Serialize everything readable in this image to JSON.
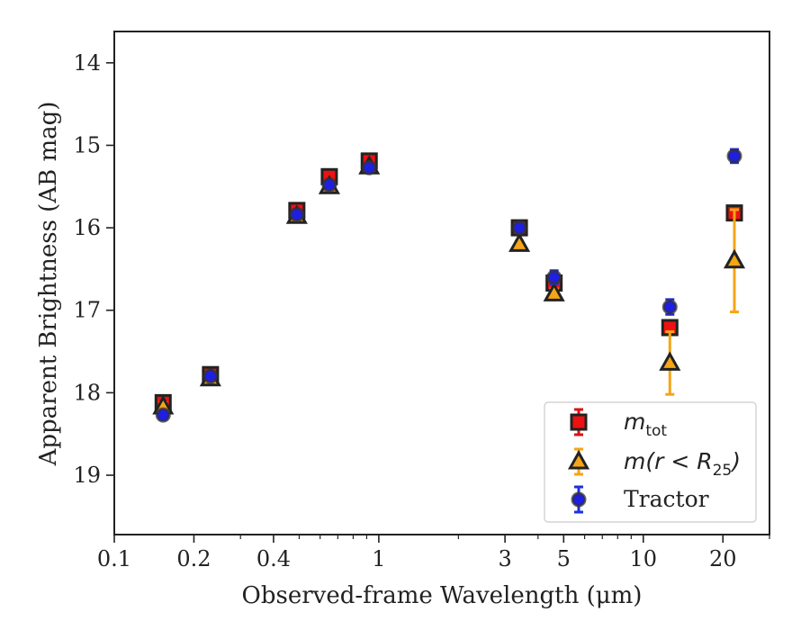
{
  "chart_data": {
    "type": "scatter",
    "title": "",
    "xlabel": "Observed-frame Wavelength (μm)",
    "ylabel": "Apparent Brightness (AB mag)",
    "xscale": "log",
    "xlim": [
      0.1,
      30
    ],
    "ylim": [
      19.72,
      13.62
    ],
    "y_inverted": true,
    "xticks": [
      {
        "value": 0.1,
        "label": "0.1"
      },
      {
        "value": 0.2,
        "label": "0.2"
      },
      {
        "value": 0.4,
        "label": "0.4"
      },
      {
        "value": 1,
        "label": "1"
      },
      {
        "value": 3,
        "label": "3"
      },
      {
        "value": 5,
        "label": "5"
      },
      {
        "value": 10,
        "label": "10"
      },
      {
        "value": 20,
        "label": "20"
      }
    ],
    "yticks": [
      {
        "value": 14,
        "label": "14"
      },
      {
        "value": 15,
        "label": "15"
      },
      {
        "value": 16,
        "label": "16"
      },
      {
        "value": 17,
        "label": "17"
      },
      {
        "value": 18,
        "label": "18"
      },
      {
        "value": 19,
        "label": "19"
      }
    ],
    "legend_position": "lower-right",
    "series": [
      {
        "name": "m_tot",
        "marker": "square",
        "face_color": "#ee1111",
        "edge_color": "#222222",
        "err_color": "#dd1111",
        "points": [
          {
            "x": 0.153,
            "y": 18.12,
            "err": 0.05
          },
          {
            "x": 0.231,
            "y": 17.78,
            "err": 0.04
          },
          {
            "x": 0.49,
            "y": 15.79,
            "err": 0.04
          },
          {
            "x": 0.65,
            "y": 15.38,
            "err": 0.04
          },
          {
            "x": 0.92,
            "y": 15.19,
            "err": 0.04
          },
          {
            "x": 3.4,
            "y": 16.0,
            "err": 0.04
          },
          {
            "x": 4.6,
            "y": 16.67,
            "err": 0.06
          },
          {
            "x": 12.6,
            "y": 17.21,
            "err": 0.06
          },
          {
            "x": 22.1,
            "y": 15.82,
            "err": 0.05
          }
        ]
      },
      {
        "name": "m(r < R25)",
        "marker": "triangle",
        "face_color": "#f5a516",
        "edge_color": "#222222",
        "err_color": "#f5a516",
        "points": [
          {
            "x": 0.153,
            "y": 18.17,
            "err": 0.05
          },
          {
            "x": 0.231,
            "y": 17.83,
            "err": 0.04
          },
          {
            "x": 0.49,
            "y": 15.86,
            "err": 0.04
          },
          {
            "x": 0.65,
            "y": 15.5,
            "err": 0.04
          },
          {
            "x": 0.92,
            "y": 15.26,
            "err": 0.04
          },
          {
            "x": 3.4,
            "y": 16.2,
            "err": 0.04
          },
          {
            "x": 4.6,
            "y": 16.8,
            "err": 0.06
          },
          {
            "x": 12.6,
            "y": 17.64,
            "err": 0.38
          },
          {
            "x": 22.1,
            "y": 16.4,
            "err": 0.62
          }
        ]
      },
      {
        "name": "Tractor",
        "marker": "circle",
        "face_color": "#1f1fe0",
        "edge_color": "#333333",
        "err_color": "#1f2fe0",
        "points": [
          {
            "x": 0.153,
            "y": 18.27,
            "err": 0.05
          },
          {
            "x": 0.231,
            "y": 17.8,
            "err": 0.04
          },
          {
            "x": 0.49,
            "y": 15.84,
            "err": 0.04
          },
          {
            "x": 0.65,
            "y": 15.48,
            "err": 0.04
          },
          {
            "x": 0.92,
            "y": 15.27,
            "err": 0.04
          },
          {
            "x": 3.4,
            "y": 16.0,
            "err": 0.04
          },
          {
            "x": 4.6,
            "y": 16.6,
            "err": 0.08
          },
          {
            "x": 12.6,
            "y": 16.96,
            "err": 0.09
          },
          {
            "x": 22.1,
            "y": 15.13,
            "err": 0.08
          }
        ]
      }
    ],
    "legend": {
      "entries": [
        {
          "series": 0,
          "label_base": "m",
          "label_sub": "tot"
        },
        {
          "series": 1,
          "label_base": "m(r < R",
          "label_sub": "25",
          "label_tail": ")"
        },
        {
          "series": 2,
          "label": "Tractor"
        }
      ]
    }
  }
}
